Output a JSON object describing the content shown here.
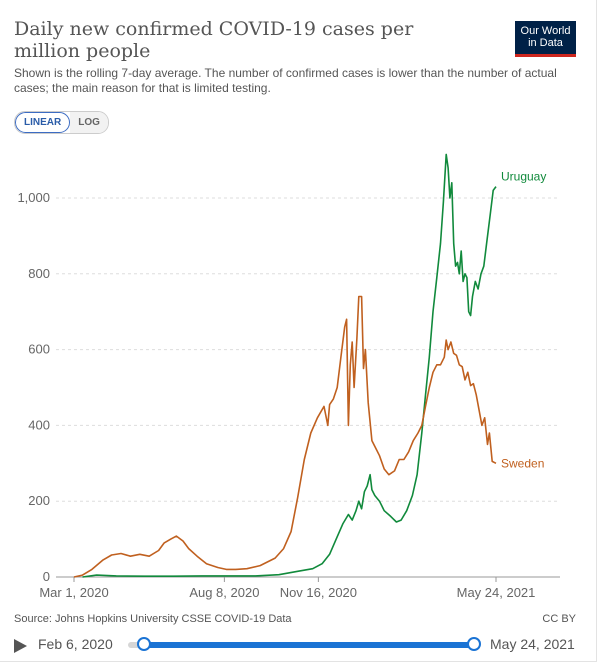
{
  "header": {
    "title": "Daily new confirmed COVID-19 cases per million people",
    "subtitle": "Shown is the rolling 7-day average. The number of confirmed cases is lower than the number of actual cases; the main reason for that is limited testing.",
    "logo_line1": "Our World",
    "logo_line2": "in Data"
  },
  "scale_toggle": {
    "linear_label": "LINEAR",
    "log_label": "LOG",
    "selected": "LINEAR"
  },
  "chart_data": {
    "type": "line",
    "x_range": [
      "2020-03-01",
      "2021-05-24"
    ],
    "x_ticks": [
      "Mar 1, 2020",
      "Aug 8, 2020",
      "Nov 16, 2020",
      "May 24, 2021"
    ],
    "y_range": [
      0,
      1100
    ],
    "y_ticks": [
      "0",
      "200",
      "400",
      "600",
      "800",
      "1,000"
    ],
    "y_tick_values": [
      0,
      200,
      400,
      600,
      800,
      1000
    ],
    "grid": true,
    "legend": "end-of-line labels",
    "series": [
      {
        "name": "Uruguay",
        "color": "#118a3c",
        "points": [
          [
            "2020-03-10",
            0
          ],
          [
            "2020-03-25",
            5
          ],
          [
            "2020-04-15",
            3
          ],
          [
            "2020-05-15",
            2
          ],
          [
            "2020-06-15",
            2
          ],
          [
            "2020-07-15",
            3
          ],
          [
            "2020-08-15",
            3
          ],
          [
            "2020-09-10",
            3
          ],
          [
            "2020-10-05",
            6
          ],
          [
            "2020-10-25",
            15
          ],
          [
            "2020-11-10",
            22
          ],
          [
            "2020-11-20",
            35
          ],
          [
            "2020-11-28",
            60
          ],
          [
            "2020-12-05",
            100
          ],
          [
            "2020-12-12",
            140
          ],
          [
            "2020-12-18",
            165
          ],
          [
            "2020-12-22",
            150
          ],
          [
            "2020-12-26",
            175
          ],
          [
            "2020-12-29",
            200
          ],
          [
            "2021-01-01",
            180
          ],
          [
            "2021-01-04",
            225
          ],
          [
            "2021-01-07",
            240
          ],
          [
            "2021-01-10",
            270
          ],
          [
            "2021-01-12",
            230
          ],
          [
            "2021-01-15",
            215
          ],
          [
            "2021-01-20",
            200
          ],
          [
            "2021-01-25",
            175
          ],
          [
            "2021-02-01",
            160
          ],
          [
            "2021-02-07",
            145
          ],
          [
            "2021-02-12",
            150
          ],
          [
            "2021-02-18",
            175
          ],
          [
            "2021-02-24",
            215
          ],
          [
            "2021-03-01",
            270
          ],
          [
            "2021-03-06",
            380
          ],
          [
            "2021-03-10",
            480
          ],
          [
            "2021-03-14",
            580
          ],
          [
            "2021-03-18",
            700
          ],
          [
            "2021-03-22",
            790
          ],
          [
            "2021-03-26",
            880
          ],
          [
            "2021-03-29",
            990
          ],
          [
            "2021-04-01",
            1115
          ],
          [
            "2021-04-03",
            1080
          ],
          [
            "2021-04-05",
            1000
          ],
          [
            "2021-04-07",
            1040
          ],
          [
            "2021-04-09",
            880
          ],
          [
            "2021-04-11",
            820
          ],
          [
            "2021-04-13",
            830
          ],
          [
            "2021-04-15",
            800
          ],
          [
            "2021-04-17",
            860
          ],
          [
            "2021-04-19",
            780
          ],
          [
            "2021-04-21",
            800
          ],
          [
            "2021-04-23",
            790
          ],
          [
            "2021-04-25",
            700
          ],
          [
            "2021-04-27",
            690
          ],
          [
            "2021-04-29",
            740
          ],
          [
            "2021-05-02",
            780
          ],
          [
            "2021-05-05",
            760
          ],
          [
            "2021-05-08",
            800
          ],
          [
            "2021-05-11",
            820
          ],
          [
            "2021-05-14",
            880
          ],
          [
            "2021-05-18",
            960
          ],
          [
            "2021-05-21",
            1020
          ],
          [
            "2021-05-24",
            1030
          ]
        ]
      },
      {
        "name": "Sweden",
        "color": "#c0601f",
        "points": [
          [
            "2020-03-01",
            0
          ],
          [
            "2020-03-10",
            5
          ],
          [
            "2020-03-20",
            20
          ],
          [
            "2020-04-01",
            45
          ],
          [
            "2020-04-10",
            58
          ],
          [
            "2020-04-20",
            62
          ],
          [
            "2020-04-30",
            55
          ],
          [
            "2020-05-10",
            60
          ],
          [
            "2020-05-20",
            55
          ],
          [
            "2020-05-30",
            70
          ],
          [
            "2020-06-05",
            90
          ],
          [
            "2020-06-12",
            100
          ],
          [
            "2020-06-18",
            108
          ],
          [
            "2020-06-25",
            95
          ],
          [
            "2020-07-01",
            75
          ],
          [
            "2020-07-10",
            55
          ],
          [
            "2020-07-20",
            35
          ],
          [
            "2020-08-01",
            25
          ],
          [
            "2020-08-10",
            20
          ],
          [
            "2020-08-20",
            20
          ],
          [
            "2020-09-01",
            22
          ],
          [
            "2020-09-15",
            30
          ],
          [
            "2020-10-01",
            50
          ],
          [
            "2020-10-10",
            75
          ],
          [
            "2020-10-18",
            120
          ],
          [
            "2020-10-25",
            210
          ],
          [
            "2020-11-01",
            310
          ],
          [
            "2020-11-08",
            380
          ],
          [
            "2020-11-15",
            420
          ],
          [
            "2020-11-22",
            450
          ],
          [
            "2020-11-26",
            400
          ],
          [
            "2020-11-28",
            455
          ],
          [
            "2020-12-02",
            470
          ],
          [
            "2020-12-06",
            500
          ],
          [
            "2020-12-10",
            580
          ],
          [
            "2020-12-14",
            660
          ],
          [
            "2020-12-16",
            680
          ],
          [
            "2020-12-18",
            400
          ],
          [
            "2020-12-20",
            560
          ],
          [
            "2020-12-22",
            620
          ],
          [
            "2020-12-24",
            500
          ],
          [
            "2020-12-27",
            630
          ],
          [
            "2020-12-29",
            740
          ],
          [
            "2021-01-01",
            740
          ],
          [
            "2021-01-03",
            550
          ],
          [
            "2021-01-05",
            600
          ],
          [
            "2021-01-08",
            460
          ],
          [
            "2021-01-12",
            360
          ],
          [
            "2021-01-16",
            340
          ],
          [
            "2021-01-20",
            320
          ],
          [
            "2021-01-25",
            285
          ],
          [
            "2021-01-30",
            270
          ],
          [
            "2021-02-05",
            280
          ],
          [
            "2021-02-10",
            310
          ],
          [
            "2021-02-15",
            310
          ],
          [
            "2021-02-20",
            330
          ],
          [
            "2021-02-25",
            360
          ],
          [
            "2021-03-02",
            380
          ],
          [
            "2021-03-06",
            400
          ],
          [
            "2021-03-10",
            450
          ],
          [
            "2021-03-14",
            500
          ],
          [
            "2021-03-18",
            540
          ],
          [
            "2021-03-22",
            560
          ],
          [
            "2021-03-26",
            560
          ],
          [
            "2021-03-30",
            580
          ],
          [
            "2021-04-01",
            625
          ],
          [
            "2021-04-03",
            600
          ],
          [
            "2021-04-06",
            620
          ],
          [
            "2021-04-09",
            590
          ],
          [
            "2021-04-12",
            585
          ],
          [
            "2021-04-15",
            560
          ],
          [
            "2021-04-18",
            555
          ],
          [
            "2021-04-21",
            520
          ],
          [
            "2021-04-24",
            540
          ],
          [
            "2021-04-27",
            505
          ],
          [
            "2021-04-30",
            510
          ],
          [
            "2021-05-03",
            480
          ],
          [
            "2021-05-06",
            440
          ],
          [
            "2021-05-09",
            400
          ],
          [
            "2021-05-12",
            420
          ],
          [
            "2021-05-15",
            350
          ],
          [
            "2021-05-17",
            380
          ],
          [
            "2021-05-20",
            305
          ],
          [
            "2021-05-24",
            300
          ]
        ]
      }
    ]
  },
  "footer": {
    "source": "Source: Johns Hopkins University CSSE COVID-19 Data",
    "license": "CC BY"
  },
  "timeline": {
    "start_label": "Feb 6, 2020",
    "end_label": "May 24, 2021"
  }
}
